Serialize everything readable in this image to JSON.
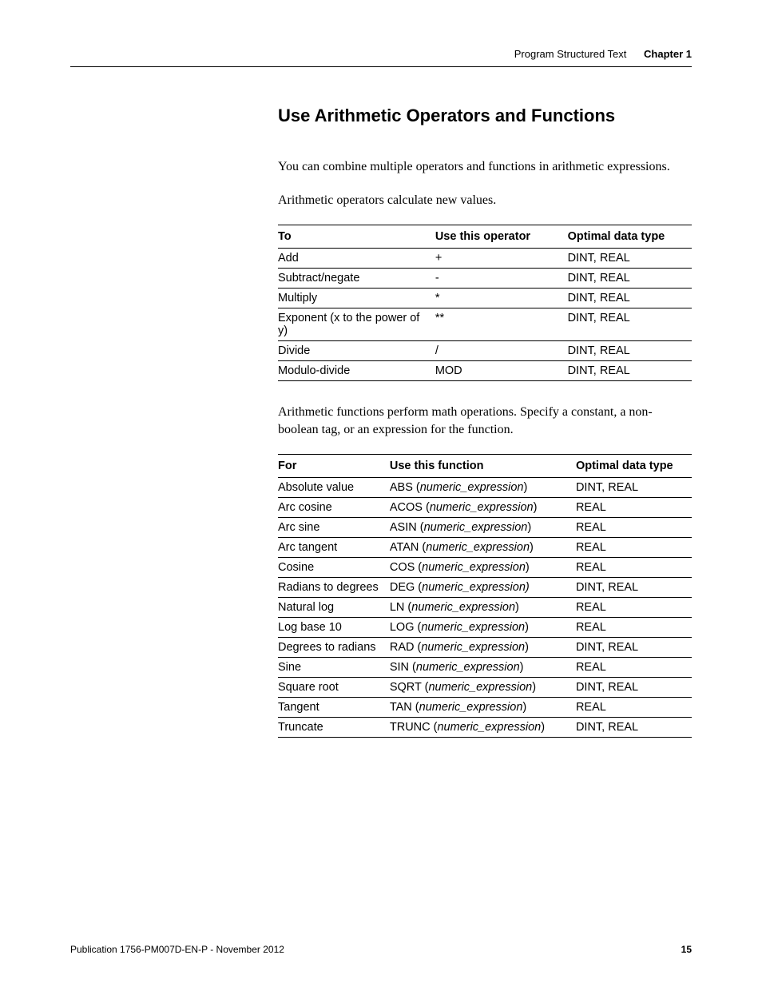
{
  "header": {
    "left": "Program Structured Text",
    "right": "Chapter 1"
  },
  "section_title": "Use Arithmetic Operators and Functions",
  "intro_para": "You can combine multiple operators and functions in arithmetic expressions.",
  "ops_para": "Arithmetic operators calculate new values.",
  "ops_table": {
    "headers": [
      "To",
      "Use this operator",
      "Optimal data type"
    ],
    "col_widths": [
      "38%",
      "32%",
      "30%"
    ],
    "rows": [
      [
        "Add",
        "+",
        "DINT, REAL"
      ],
      [
        "Subtract/negate",
        "-",
        "DINT, REAL"
      ],
      [
        "Multiply",
        "*",
        "DINT, REAL"
      ],
      [
        "Exponent (x to the power of y)",
        "**",
        "DINT, REAL"
      ],
      [
        "Divide",
        "/",
        "DINT, REAL"
      ],
      [
        "Modulo-divide",
        "MOD",
        "DINT, REAL"
      ]
    ]
  },
  "funcs_para": "Arithmetic functions perform math operations. Specify a constant, a non-boolean tag, or an expression for the function.",
  "funcs_table": {
    "headers": [
      "For",
      "Use this function",
      "Optimal data type"
    ],
    "col_widths": [
      "27%",
      "45%",
      "28%"
    ],
    "rows": [
      {
        "for": "Absolute value",
        "fn": "ABS",
        "arg": "numeric_expression",
        "opt": "DINT, REAL",
        "close_italic": false
      },
      {
        "for": "Arc cosine",
        "fn": "ACOS",
        "arg": "numeric_expression",
        "opt": "REAL",
        "close_italic": false
      },
      {
        "for": "Arc sine",
        "fn": "ASIN",
        "arg": "numeric_expression",
        "opt": "REAL",
        "close_italic": false
      },
      {
        "for": "Arc tangent",
        "fn": "ATAN",
        "arg": "numeric_expression",
        "opt": "REAL",
        "close_italic": false
      },
      {
        "for": "Cosine",
        "fn": "COS",
        "arg": "numeric_expression",
        "opt": "REAL",
        "close_italic": false
      },
      {
        "for": "Radians to degrees",
        "fn": "DEG",
        "arg": "numeric_expression",
        "opt": "DINT, REAL",
        "close_italic": true
      },
      {
        "for": "Natural log",
        "fn": "LN",
        "arg": "numeric_expression",
        "opt": "REAL",
        "close_italic": false
      },
      {
        "for": "Log base 10",
        "fn": "LOG",
        "arg": "numeric_expression",
        "opt": "REAL",
        "close_italic": false
      },
      {
        "for": "Degrees to radians",
        "fn": "RAD",
        "arg": "numeric_expression",
        "opt": "DINT, REAL",
        "close_italic": false
      },
      {
        "for": "Sine",
        "fn": "SIN",
        "arg": "numeric_expression",
        "opt": "REAL",
        "close_italic": false
      },
      {
        "for": "Square root",
        "fn": "SQRT",
        "arg": "numeric_expression",
        "opt": "DINT, REAL",
        "close_italic": false
      },
      {
        "for": "Tangent",
        "fn": "TAN",
        "arg": "numeric_expression",
        "opt": "REAL",
        "close_italic": false
      },
      {
        "for": "Truncate",
        "fn": "TRUNC",
        "arg": "numeric_expression",
        "opt": "DINT, REAL",
        "close_italic": false
      }
    ]
  },
  "footer": {
    "pub": "Publication 1756-PM007D-EN-P - November 2012",
    "page": "15"
  }
}
